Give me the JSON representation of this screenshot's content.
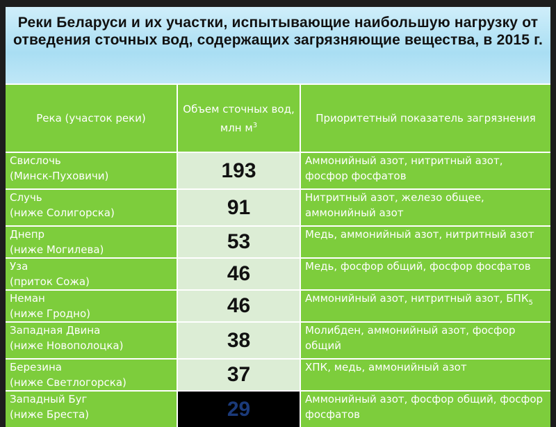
{
  "title": "Реки Беларуси и их участки, испытывающие наибольшую нагрузку от отведения сточных вод, содержащих загрязняющие вещества, в 2015 г.",
  "headers": {
    "river": "Река (участок реки)",
    "volume": "Объем сточных вод, млн м",
    "volume_sup": "3",
    "indicator": "Приоритетный показатель загрязнения"
  },
  "rows": [
    {
      "river": "Свислочь",
      "section": "(Минск-Пуховичи)",
      "volume": "193",
      "indicator": "Аммонийный азот, нитритный азот, фосфор фосфатов",
      "indicator_sub": ""
    },
    {
      "river": "Случь",
      "section": "(ниже Солигорска)",
      "volume": "91",
      "indicator": "Нитритный азот, железо общее, аммонийный азот",
      "indicator_sub": ""
    },
    {
      "river": "Днепр",
      "section": "(ниже Могилева)",
      "volume": "53",
      "indicator": "Медь, аммонийный азот, нитритный азот",
      "indicator_sub": ""
    },
    {
      "river": "Уза",
      "section": "(приток Сожа)",
      "volume": "46",
      "indicator": "Медь, фосфор общий, фосфор фосфатов",
      "indicator_sub": ""
    },
    {
      "river": "Неман",
      "section": "(ниже Гродно)",
      "volume": "46",
      "indicator": "Аммонийный азот, нитритный азот, БПК",
      "indicator_sub": "5"
    },
    {
      "river": "Западная Двина",
      "section": "(ниже Новополоцка)",
      "volume": "38",
      "indicator": "Молибден, аммонийный азот, фосфор общий",
      "indicator_sub": ""
    },
    {
      "river": "Березина",
      "section": "(ниже Светлогорска)",
      "volume": "37",
      "indicator": "ХПК, медь, аммонийный азот",
      "indicator_sub": ""
    },
    {
      "river": "Западный Буг",
      "section": "(ниже Бреста)",
      "volume": "29",
      "indicator": "Аммонийный азот, фосфор общий, фосфор фосфатов",
      "indicator_sub": ""
    }
  ],
  "colors": {
    "header_green": "#7dcd3c",
    "volume_cell": "#dcedd5",
    "highlight_cell": "#000000",
    "highlight_text": "#1b3a7a"
  }
}
